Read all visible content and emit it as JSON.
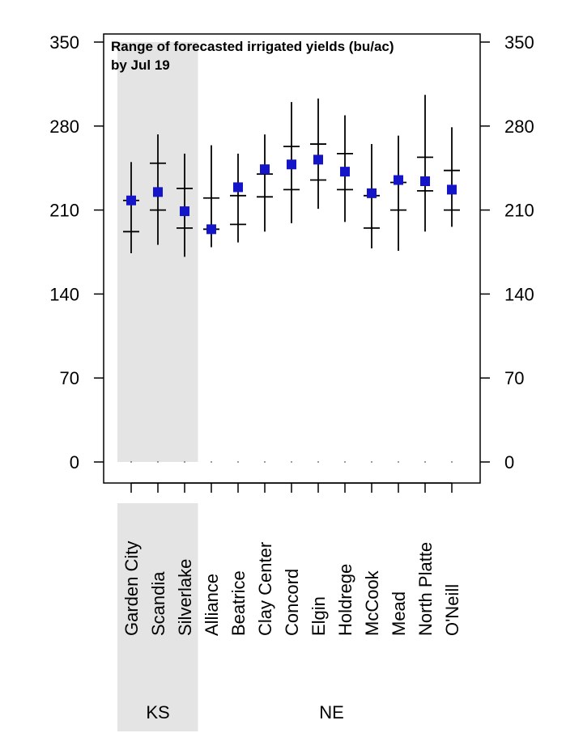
{
  "chart_data": {
    "type": "scatter",
    "title": "Range of forecasted irrigated yields (bu/ac)",
    "subtitle": "by Jul 19",
    "xlabel": "",
    "ylabel": "",
    "ylim": [
      0,
      350
    ],
    "y_ticks": [
      0,
      70,
      140,
      210,
      280,
      350
    ],
    "y_tick_labels": [
      "0",
      "70",
      "140",
      "210",
      "280",
      "350"
    ],
    "grid": false,
    "categories": [
      "Garden City",
      "Scandia",
      "Silverlake",
      "Alliance",
      "Beatrice",
      "Clay Center",
      "Concord",
      "Elgin",
      "Holdrege",
      "McCook",
      "Mead",
      "North Platte",
      "O'Neill"
    ],
    "groups": [
      {
        "label": "KS",
        "count": 3,
        "shaded": true
      },
      {
        "label": "NE",
        "count": 10,
        "shaded": false
      }
    ],
    "series": [
      {
        "values": [
          218,
          225,
          209,
          194,
          229,
          244,
          248,
          252,
          242,
          224,
          235,
          234,
          227
        ]
      }
    ],
    "ranges": [
      {
        "min": 174,
        "p_low": 192,
        "p_high": 218,
        "max": 250
      },
      {
        "min": 181,
        "p_low": 210,
        "p_high": 249,
        "max": 273
      },
      {
        "min": 171,
        "p_low": 195,
        "p_high": 228,
        "max": 257
      },
      {
        "min": 179,
        "p_low": 194,
        "p_high": 220,
        "max": 264
      },
      {
        "min": 183,
        "p_low": 198,
        "p_high": 222,
        "max": 257
      },
      {
        "min": 192,
        "p_low": 221,
        "p_high": 240,
        "max": 273
      },
      {
        "min": 199,
        "p_low": 227,
        "p_high": 263,
        "max": 300
      },
      {
        "min": 211,
        "p_low": 235,
        "p_high": 265,
        "max": 303
      },
      {
        "min": 200,
        "p_low": 227,
        "p_high": 257,
        "max": 289
      },
      {
        "min": 178,
        "p_low": 195,
        "p_high": 222,
        "max": 265
      },
      {
        "min": 176,
        "p_low": 210,
        "p_high": 233,
        "max": 272
      },
      {
        "min": 192,
        "p_low": 226,
        "p_high": 254,
        "max": 306
      },
      {
        "min": 196,
        "p_low": 210,
        "p_high": 243,
        "max": 279
      }
    ],
    "colors": {
      "marker": "#1414c8",
      "lines": "#000000",
      "shade": "#e4e4e4"
    }
  }
}
